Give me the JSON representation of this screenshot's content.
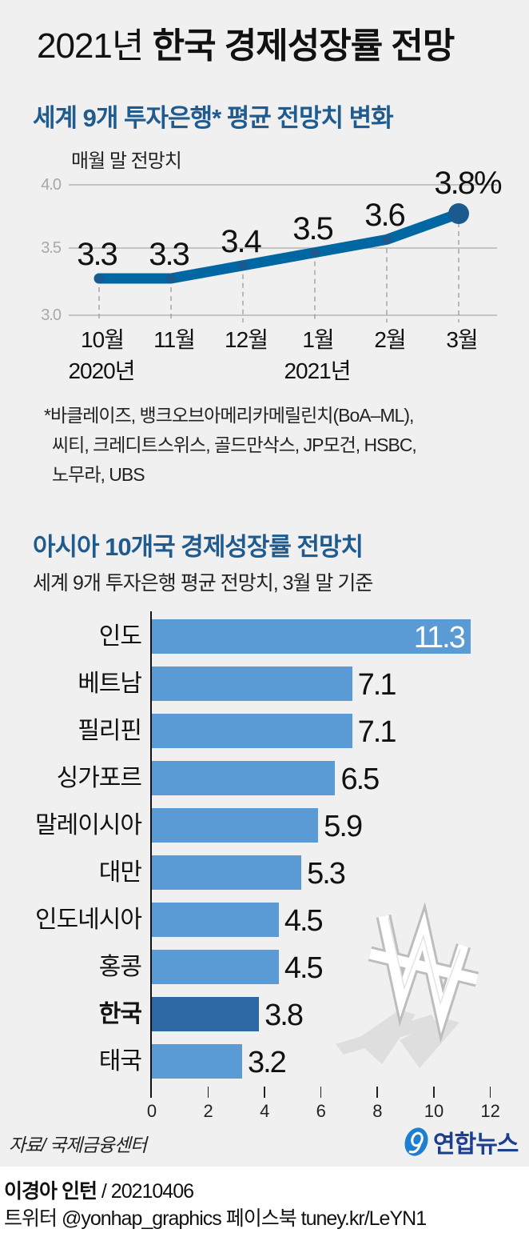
{
  "title": {
    "light": "2021년",
    "bold": "한국 경제성장률 전망"
  },
  "section1": {
    "title": "세계 9개 투자은행* 평균 전망치 변화",
    "unit_label": "매월 말 전망치",
    "footnote_lines": [
      "*바클레이즈, 뱅크오브아메리카메릴린치(BoA–ML),",
      "씨티, 크레디트스위스, 골드만삭스, JP모건, HSBC,",
      "노무라, UBS"
    ]
  },
  "section2": {
    "title": "아시아 10개국 경제성장률 전망치",
    "subtitle": "세계 9개 투자은행 평균 전망치, 3월 말 기준"
  },
  "source": "자료/ 국제금융센터",
  "logo": {
    "text": "연합뉴스",
    "icon": "yonhap-logo-icon"
  },
  "credits": {
    "author": "이경아 인턴",
    "date": " / 20210406",
    "social": "트위터 @yonhap_graphics  페이스북 tuney.kr/LeYN1"
  },
  "decoration": {
    "icon": "won-sign-icon"
  },
  "colors": {
    "background": "#f0f0f0",
    "title_blue": "#1f5b8e",
    "line": "#0067a3",
    "line_dot": "#1b5a8f",
    "bar": "#5b9bd5",
    "bar_highlight": "#2e69a6",
    "grid": "#b5b5b5"
  },
  "chart_data": [
    {
      "type": "line",
      "title": "세계 9개 투자은행* 평균 전망치 변화",
      "ylabel": "매월 말 전망치",
      "xlabel": "",
      "categories": [
        "10월",
        "11월",
        "12월",
        "1월",
        "2월",
        "3월"
      ],
      "year_labels": [
        {
          "label": "2020년",
          "index": 0
        },
        {
          "label": "2021년",
          "index": 3
        }
      ],
      "values": [
        3.3,
        3.3,
        3.4,
        3.5,
        3.6,
        3.8
      ],
      "value_labels": [
        "3.3",
        "3.3",
        "3.4",
        "3.5",
        "3.6",
        "3.8%"
      ],
      "yticks": [
        "4.0",
        "3.5",
        "3.0"
      ],
      "ylim": [
        3.0,
        4.0
      ],
      "unit": "%",
      "grid": true
    },
    {
      "type": "bar",
      "orientation": "horizontal",
      "title": "아시아 10개국 경제성장률 전망치",
      "subtitle": "세계 9개 투자은행 평균 전망치, 3월 말 기준",
      "categories": [
        "인도",
        "베트남",
        "필리핀",
        "싱가포르",
        "말레이시아",
        "대만",
        "인도네시아",
        "홍콩",
        "한국",
        "태국"
      ],
      "values": [
        11.3,
        7.1,
        7.1,
        6.5,
        5.9,
        5.3,
        4.5,
        4.5,
        3.8,
        3.2
      ],
      "value_labels": [
        "11.3",
        "7.1",
        "7.1",
        "6.5",
        "5.9",
        "5.3",
        "4.5",
        "4.5",
        "3.8",
        "3.2"
      ],
      "highlight": "한국",
      "xticks": [
        "0",
        "2",
        "4",
        "6",
        "8",
        "10",
        "12"
      ],
      "xlim": [
        0,
        12
      ],
      "unit": "%"
    }
  ]
}
